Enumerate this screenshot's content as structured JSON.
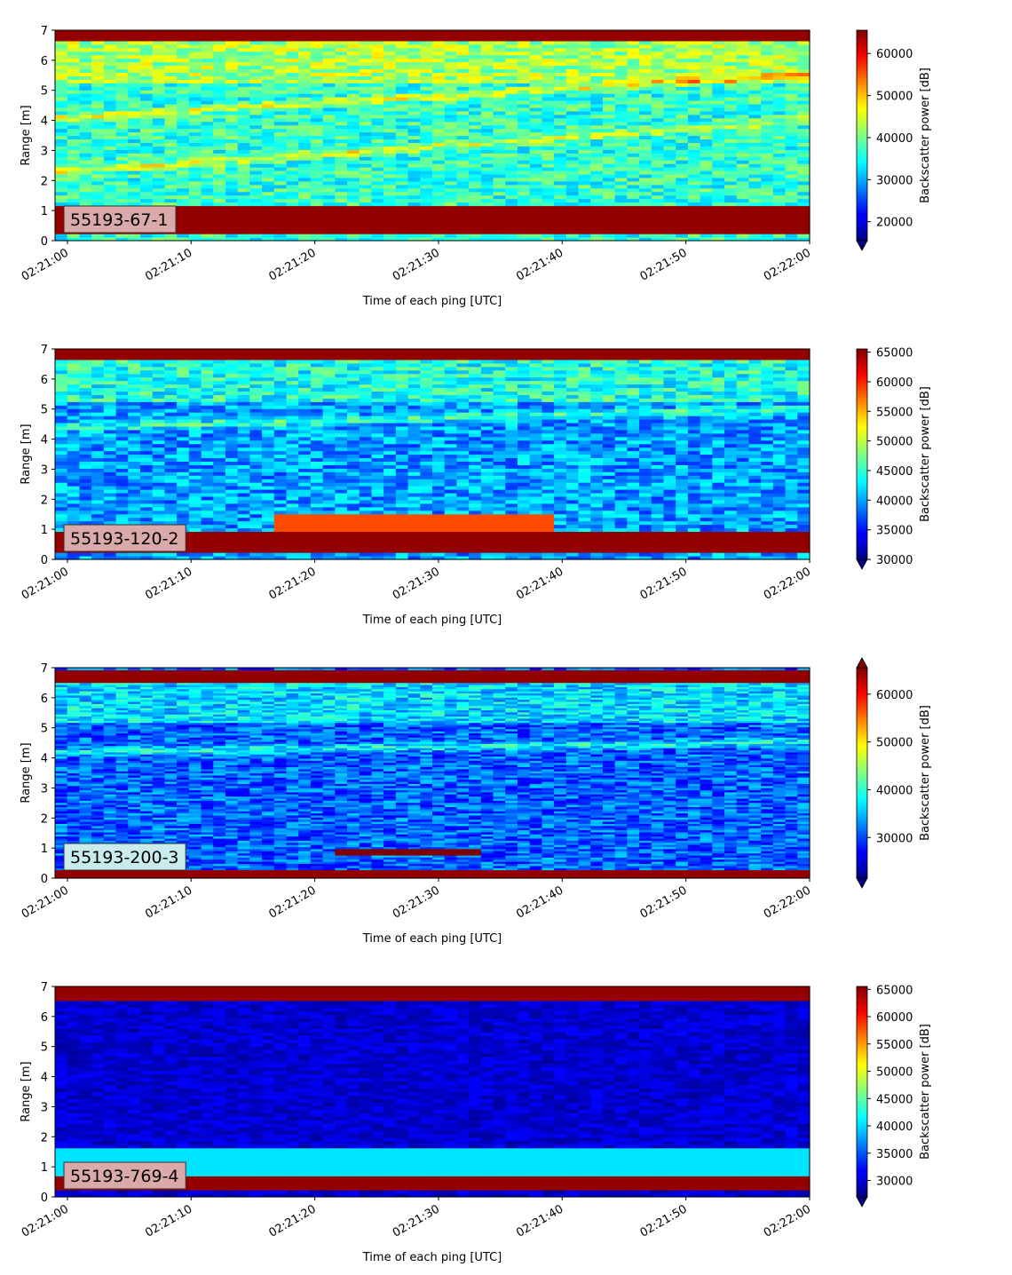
{
  "chart_data": [
    {
      "type": "heatmap",
      "label": "55193-67-1",
      "label_box_color": "#d9aaa9",
      "xlabel": "Time of each ping [UTC]",
      "ylabel": "Range [m]",
      "x_ticks": [
        "02:21:00",
        "02:21:10",
        "02:21:20",
        "02:21:30",
        "02:21:40",
        "02:21:50",
        "02:22:00"
      ],
      "xlim": [
        "02:20:59",
        "02:22:00"
      ],
      "ylim": [
        0,
        7
      ],
      "y_ticks": [
        0,
        1,
        2,
        3,
        4,
        5,
        6,
        7
      ],
      "colorbar": {
        "label": "Backscatter power [dB]",
        "cmap": "jet",
        "vmin": 15500,
        "vmax": 65535,
        "ticks": [
          20000,
          30000,
          40000,
          50000,
          60000
        ],
        "extend": "min"
      },
      "bands": [
        {
          "description": "strong return near bottom",
          "range": [
            0.2,
            1.2
          ],
          "level": "max"
        },
        {
          "description": "strong return near top",
          "range": [
            6.6,
            7.0
          ],
          "level": "max"
        },
        {
          "description": "descending layer",
          "start": [
            "02:21:00",
            4.1
          ],
          "end": [
            "02:22:00",
            5.5
          ]
        },
        {
          "description": "ascending layer",
          "start": [
            "02:21:00",
            2.3
          ],
          "end": [
            "02:22:00",
            4.0
          ]
        }
      ]
    },
    {
      "type": "heatmap",
      "label": "55193-120-2",
      "label_box_color": "#d9aaa9",
      "xlabel": "Time of each ping [UTC]",
      "ylabel": "Range [m]",
      "x_ticks": [
        "02:21:00",
        "02:21:10",
        "02:21:20",
        "02:21:30",
        "02:21:40",
        "02:21:50",
        "02:22:00"
      ],
      "xlim": [
        "02:20:59",
        "02:22:00"
      ],
      "ylim": [
        0,
        7
      ],
      "y_ticks": [
        0,
        1,
        2,
        3,
        4,
        5,
        6,
        7
      ],
      "colorbar": {
        "label": "Backscatter power [dB]",
        "cmap": "jet",
        "vmin": 30000,
        "vmax": 65535,
        "ticks": [
          30000,
          35000,
          40000,
          45000,
          50000,
          55000,
          60000,
          65000
        ],
        "extend": "min"
      },
      "bands": [
        {
          "description": "strong return near bottom",
          "range": [
            0.2,
            0.9
          ],
          "level": "max"
        },
        {
          "description": "strong return near top",
          "range": [
            6.6,
            7.0
          ],
          "level": "max"
        },
        {
          "description": "target near bottom",
          "time": [
            "02:21:17",
            "02:21:39"
          ],
          "range": [
            0.9,
            1.5
          ],
          "level": "high"
        },
        {
          "description": "layer",
          "start": [
            "02:21:00",
            4.4
          ],
          "end": [
            "02:22:00",
            5.0
          ]
        }
      ]
    },
    {
      "type": "heatmap",
      "label": "55193-200-3",
      "label_box_color": "#c8ecee",
      "xlabel": "Time of each ping [UTC]",
      "ylabel": "Range [m]",
      "x_ticks": [
        "02:21:00",
        "02:21:10",
        "02:21:20",
        "02:21:30",
        "02:21:40",
        "02:21:50",
        "02:22:00"
      ],
      "xlim": [
        "02:20:59",
        "02:22:00"
      ],
      "ylim": [
        0,
        7
      ],
      "y_ticks": [
        0,
        1,
        2,
        3,
        4,
        5,
        6,
        7
      ],
      "colorbar": {
        "label": "Backscatter power [dB]",
        "cmap": "jet",
        "vmin": 21500,
        "vmax": 65535,
        "ticks": [
          30000,
          40000,
          50000,
          60000
        ],
        "extend": "both"
      },
      "bands": [
        {
          "description": "strong return near bottom",
          "range": [
            0.0,
            0.3
          ],
          "level": "max"
        },
        {
          "description": "strong return near top",
          "range": [
            6.5,
            6.9
          ],
          "level": "max"
        },
        {
          "description": "target near bottom",
          "time": [
            "02:21:22",
            "02:21:33"
          ],
          "range": [
            0.75,
            0.95
          ],
          "level": "max"
        },
        {
          "description": "thin layer",
          "start": [
            "02:21:00",
            4.2
          ],
          "end": [
            "02:22:00",
            4.55
          ]
        }
      ]
    },
    {
      "type": "heatmap",
      "label": "55193-769-4",
      "label_box_color": "#d9aaa9",
      "xlabel": "Time of each ping [UTC]",
      "ylabel": "Range [m]",
      "x_ticks": [
        "02:21:00",
        "02:21:10",
        "02:21:20",
        "02:21:30",
        "02:21:40",
        "02:21:50",
        "02:22:00"
      ],
      "xlim": [
        "02:20:59",
        "02:22:00"
      ],
      "ylim": [
        0,
        7
      ],
      "y_ticks": [
        0,
        1,
        2,
        3,
        4,
        5,
        6,
        7
      ],
      "colorbar": {
        "label": "Backscatter power [dB]",
        "cmap": "jet",
        "vmin": 27000,
        "vmax": 65535,
        "ticks": [
          30000,
          35000,
          40000,
          45000,
          50000,
          55000,
          60000,
          65000
        ],
        "extend": "min"
      },
      "bands": [
        {
          "description": "strong return near bottom",
          "range": [
            0.25,
            0.65
          ],
          "level": "max"
        },
        {
          "description": "strong return near top",
          "range": [
            6.55,
            7.0
          ],
          "level": "max"
        },
        {
          "description": "brighter band near bottom",
          "range": [
            0.7,
            1.6
          ],
          "level": "mid"
        }
      ]
    }
  ]
}
